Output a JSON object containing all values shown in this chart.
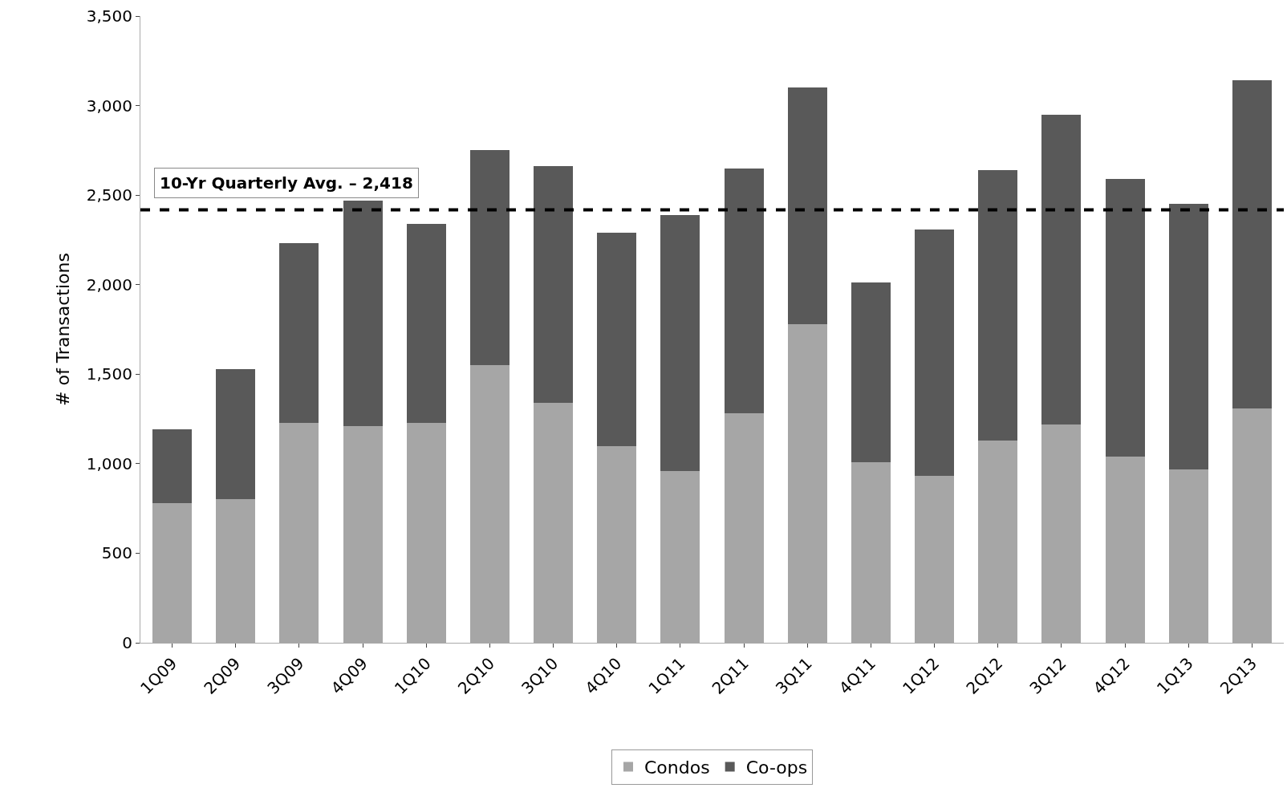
{
  "chart_data": {
    "type": "bar",
    "stacked": true,
    "ylabel": "# of Transactions",
    "categories": [
      "1Q09",
      "2Q09",
      "3Q09",
      "4Q09",
      "1Q10",
      "2Q10",
      "3Q10",
      "4Q10",
      "1Q11",
      "2Q11",
      "3Q11",
      "4Q11",
      "1Q12",
      "2Q12",
      "3Q12",
      "4Q12",
      "1Q13",
      "2Q13"
    ],
    "series": [
      {
        "name": "Condos",
        "color": "#a6a6a6",
        "values": [
          780,
          800,
          1230,
          1210,
          1230,
          1550,
          1340,
          1100,
          960,
          1280,
          1780,
          1010,
          930,
          1130,
          1220,
          1040,
          970,
          1310
        ]
      },
      {
        "name": "Co-ops",
        "color": "#595959",
        "values": [
          410,
          730,
          1000,
          1260,
          1110,
          1200,
          1320,
          1190,
          1430,
          1370,
          1320,
          1000,
          1380,
          1510,
          1730,
          1550,
          1480,
          1830
        ]
      }
    ],
    "ylim": [
      0,
      3500
    ],
    "yticks": [
      {
        "value": 0,
        "label": "0"
      },
      {
        "value": 500,
        "label": "500"
      },
      {
        "value": 1000,
        "label": "1,000"
      },
      {
        "value": 1500,
        "label": "1,500"
      },
      {
        "value": 2000,
        "label": "2,000"
      },
      {
        "value": 2500,
        "label": "2,500"
      },
      {
        "value": 3000,
        "label": "3,000"
      },
      {
        "value": 3500,
        "label": "3,500"
      }
    ],
    "ref_lines": [
      {
        "axis": "y",
        "value": 2418,
        "label": "10-Yr Quarterly Avg. – 2,418",
        "color": "#000000",
        "line_style": "dashed"
      }
    ],
    "legend": "bottom"
  }
}
